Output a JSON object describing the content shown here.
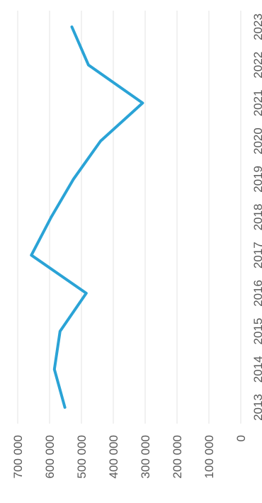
{
  "chart_data": {
    "type": "line",
    "orientation": "rotated-90-ccw",
    "title": "",
    "xlabel": "",
    "ylabel": "",
    "categories": [
      "2013",
      "2014",
      "2015",
      "2016",
      "2017",
      "2018",
      "2019",
      "2020",
      "2021",
      "2022",
      "2023"
    ],
    "series": [
      {
        "values": [
          552000,
          585000,
          567000,
          485000,
          657000,
          595000,
          525000,
          440000,
          308000,
          478000,
          530000
        ],
        "color": "#2aa3d6"
      }
    ],
    "ylim": [
      0,
      700000
    ],
    "yticks": [
      0,
      100000,
      200000,
      300000,
      400000,
      500000,
      600000,
      700000
    ],
    "ytick_labels": [
      "0",
      "100 000",
      "200 000",
      "300 000",
      "400 000",
      "500 000",
      "600 000",
      "700 000"
    ],
    "grid": true,
    "gridline_color": "#e3e3e3"
  }
}
